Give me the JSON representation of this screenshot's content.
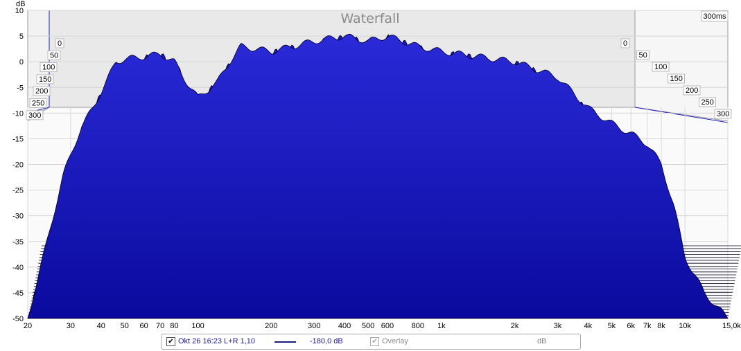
{
  "chart_data": {
    "type": "area",
    "title": "Waterfall",
    "y_unit_label": "dB",
    "ylim": [
      -50,
      10
    ],
    "yticks": [
      10,
      5,
      0,
      -5,
      -10,
      -15,
      -20,
      -25,
      -30,
      -35,
      -40,
      -45,
      -50
    ],
    "x_scale": "log",
    "xlim": [
      20,
      15000
    ],
    "xticks": [
      {
        "v": 20,
        "t": "20"
      },
      {
        "v": 30,
        "t": "30"
      },
      {
        "v": 40,
        "t": "40"
      },
      {
        "v": 50,
        "t": "50"
      },
      {
        "v": 60,
        "t": "60"
      },
      {
        "v": 70,
        "t": "70"
      },
      {
        "v": 80,
        "t": "80"
      },
      {
        "v": 100,
        "t": "100"
      },
      {
        "v": 200,
        "t": "200"
      },
      {
        "v": 300,
        "t": "300"
      },
      {
        "v": 400,
        "t": "400"
      },
      {
        "v": 500,
        "t": "500"
      },
      {
        "v": 600,
        "t": "600"
      },
      {
        "v": 800,
        "t": "800"
      },
      {
        "v": 1000,
        "t": "1k"
      },
      {
        "v": 2000,
        "t": "2k"
      },
      {
        "v": 3000,
        "t": "3k"
      },
      {
        "v": 4000,
        "t": "4k"
      },
      {
        "v": 5000,
        "t": "5k"
      },
      {
        "v": 6000,
        "t": "6k"
      },
      {
        "v": 7000,
        "t": "7k"
      },
      {
        "v": 8000,
        "t": "8k"
      },
      {
        "v": 10000,
        "t": "10k"
      },
      {
        "v": 15000,
        "t": "15,0k Hz"
      }
    ],
    "time_axis_label": "300ms",
    "time_ticks": [
      "0",
      "50",
      "100",
      "150",
      "200",
      "250",
      "300"
    ],
    "front_slice_ms": 0,
    "front_slice_points": [
      [
        20,
        -50
      ],
      [
        24,
        -35
      ],
      [
        28,
        -22
      ],
      [
        33,
        -13
      ],
      [
        37,
        -9
      ],
      [
        42,
        -4
      ],
      [
        46,
        0
      ],
      [
        50,
        0.5
      ],
      [
        60,
        1
      ],
      [
        70,
        1.5
      ],
      [
        80,
        0
      ],
      [
        90,
        -4
      ],
      [
        100,
        -7
      ],
      [
        120,
        -4
      ],
      [
        135,
        0
      ],
      [
        150,
        3
      ],
      [
        200,
        2
      ],
      [
        300,
        4
      ],
      [
        400,
        5
      ],
      [
        500,
        4
      ],
      [
        600,
        5
      ],
      [
        800,
        3
      ],
      [
        1000,
        2
      ],
      [
        2000,
        0
      ],
      [
        3000,
        -3
      ],
      [
        4000,
        -9
      ],
      [
        5000,
        -12
      ],
      [
        6000,
        -14
      ],
      [
        7000,
        -16
      ],
      [
        8000,
        -20
      ],
      [
        9000,
        -28
      ],
      [
        10000,
        -38
      ],
      [
        12000,
        -45
      ],
      [
        15000,
        -50
      ]
    ],
    "series_color": "#1a1ac4"
  },
  "legend": {
    "checked_mark": "✔",
    "measurement": "Okt 26 16:23 L+R 1,10",
    "level": "-180,0 dB",
    "overlay": "Overlay",
    "unit": "dB"
  }
}
